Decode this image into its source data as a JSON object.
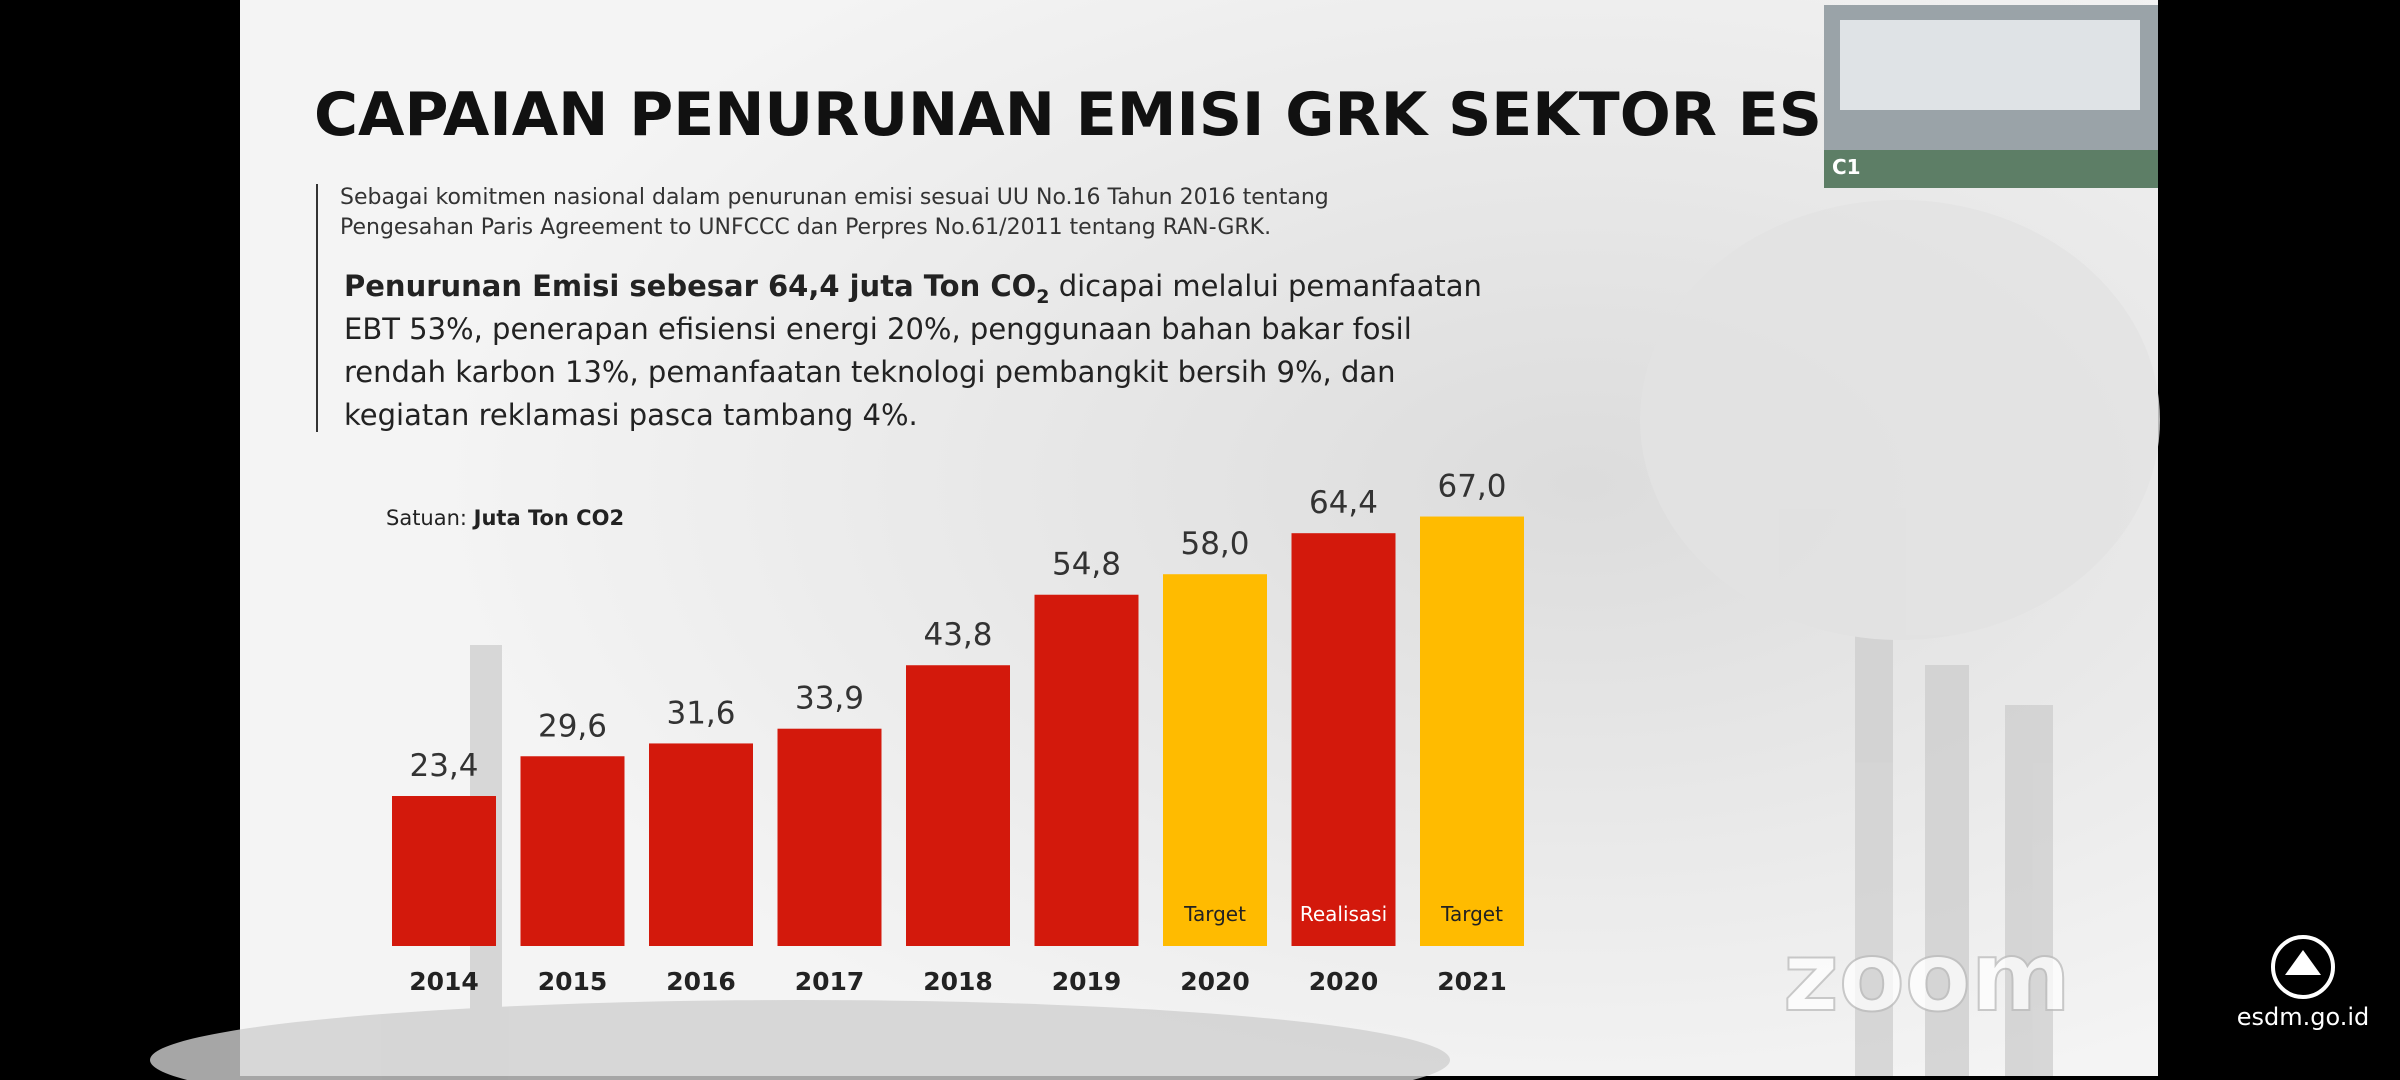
{
  "slide": {
    "title": "CAPAIAN PENURUNAN EMISI GRK SEKTOR ESD",
    "intro": [
      "Sebagai komitmen nasional dalam penurunan emisi sesuai UU No.16 Tahun 2016 tentang",
      "Pengesahan Paris Agreement to UNFCCC dan Perpres No.61/2011 tentang RAN-GRK."
    ],
    "summary": {
      "highlight": "Penurunan Emisi sebesar 64,4 juta Ton CO",
      "highlight_sub": "2",
      "first_rest": " dicapai melalui pemanfaatan",
      "lines": [
        "EBT 53%, penerapan efisiensi energi 20%, penggunaan bahan bakar fosil",
        "rendah karbon 13%, pemanfaatan teknologi pembangkit bersih 9%, dan",
        "kegiatan reklamasi pasca tambang 4%."
      ]
    },
    "unit_label": "Satuan: ",
    "unit_value": "Juta Ton CO2"
  },
  "chart_data": {
    "type": "bar",
    "categories": [
      "2014",
      "2015",
      "2016",
      "2017",
      "2018",
      "2019",
      "2020",
      "2020",
      "2021"
    ],
    "values": [
      23.4,
      29.6,
      31.6,
      33.9,
      43.8,
      54.8,
      58.0,
      64.4,
      67.0
    ],
    "value_labels": [
      "23,4",
      "29,6",
      "31,6",
      "33,9",
      "43,8",
      "54,8",
      "58,0",
      "64,4",
      "67,0"
    ],
    "bar_labels": [
      null,
      null,
      null,
      null,
      null,
      null,
      "Target",
      "Realisasi",
      "Target"
    ],
    "colors": [
      "#d3190c",
      "#d3190c",
      "#d3190c",
      "#d3190c",
      "#d3190c",
      "#d3190c",
      "#ffbb00",
      "#d3190c",
      "#ffbb00"
    ]
  },
  "video": {
    "participant_label": "C1",
    "watermark": "zoom",
    "source": "esdm.go.id"
  }
}
